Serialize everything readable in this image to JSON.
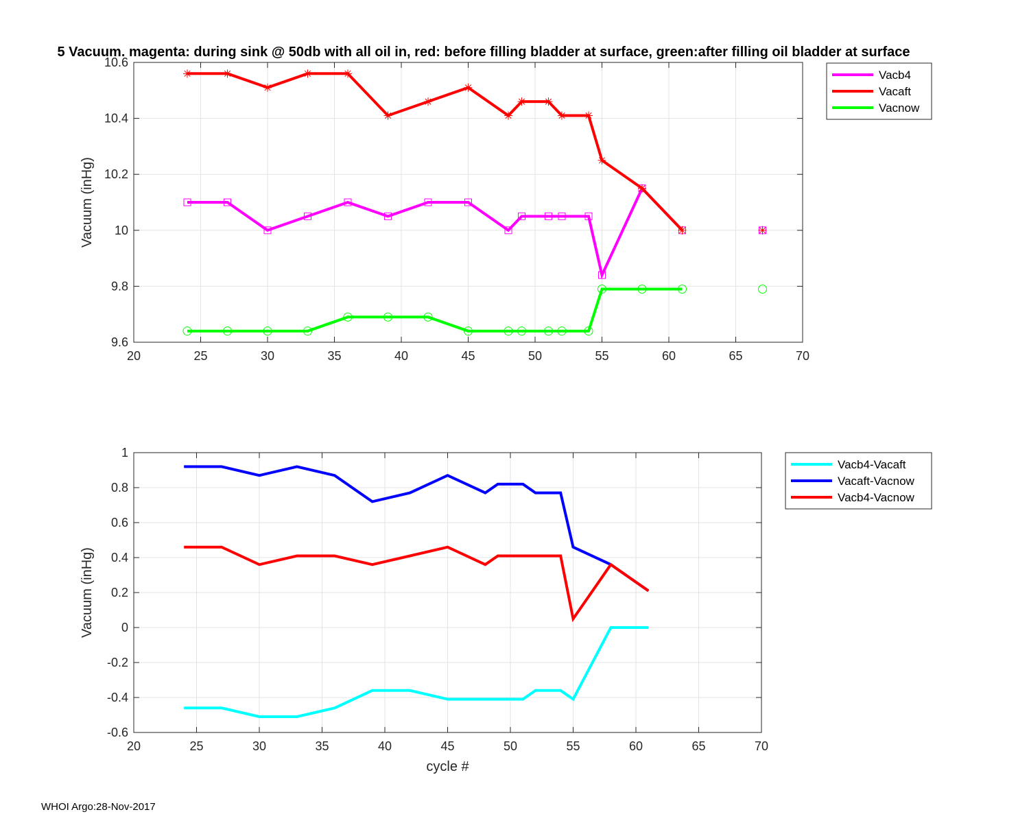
{
  "title": "5 Vacuum. magenta: during sink @ 50db with all oil in, red: before filling bladder at surface, green:after filling oil bladder at surface",
  "footer": "WHOI Argo:28-Nov-2017",
  "chart_data": [
    {
      "type": "line",
      "title": "5 Vacuum. magenta: during sink @ 50db with all oil in, red: before filling bladder at surface, green:after filling oil bladder at surface",
      "xlabel": "",
      "ylabel": "Vacuum (inHg)",
      "xlim": [
        20,
        70
      ],
      "ylim": [
        9.6,
        10.6
      ],
      "xticks": [
        20,
        25,
        30,
        35,
        40,
        45,
        50,
        55,
        60,
        65,
        70
      ],
      "xtick_labels": [
        "20",
        "25",
        "30",
        "35",
        "40",
        "45",
        "50",
        "55",
        "60",
        "65",
        "70"
      ],
      "yticks": [
        9.6,
        9.8,
        10,
        10.2,
        10.4,
        10.6
      ],
      "ytick_labels": [
        "9.6",
        "9.8",
        "10",
        "10.2",
        "10.4",
        "10.6"
      ],
      "grid": true,
      "legend_position": "outside-top-right",
      "x": [
        24,
        27,
        30,
        33,
        36,
        39,
        42,
        45,
        48,
        49,
        51,
        52,
        54,
        55,
        58,
        61,
        67
      ],
      "series": [
        {
          "name": "Vacb4",
          "color": "#ff00ff",
          "marker": "square",
          "values": [
            10.1,
            10.1,
            10.0,
            10.05,
            10.1,
            10.05,
            10.1,
            10.1,
            10.0,
            10.05,
            10.05,
            10.05,
            10.05,
            9.84,
            10.15,
            10.0,
            10.0
          ]
        },
        {
          "name": "Vacaft",
          "color": "#ff0000",
          "marker": "star",
          "values": [
            10.56,
            10.56,
            10.51,
            10.56,
            10.56,
            10.41,
            10.46,
            10.51,
            10.41,
            10.46,
            10.46,
            10.41,
            10.41,
            10.25,
            10.15,
            10.0,
            10.0
          ]
        },
        {
          "name": "Vacnow",
          "color": "#00ff00",
          "marker": "circle",
          "values": [
            9.64,
            9.64,
            9.64,
            9.64,
            9.69,
            9.69,
            9.69,
            9.64,
            9.64,
            9.64,
            9.64,
            9.64,
            9.64,
            9.79,
            9.79,
            9.79,
            9.79
          ]
        }
      ]
    },
    {
      "type": "line",
      "title": "",
      "xlabel": "cycle #",
      "ylabel": "Vacuum (inHg)",
      "xlim": [
        20,
        70
      ],
      "ylim": [
        -0.6,
        1
      ],
      "xticks": [
        20,
        25,
        30,
        35,
        40,
        45,
        50,
        55,
        60,
        65,
        70
      ],
      "xtick_labels": [
        "20",
        "25",
        "30",
        "35",
        "40",
        "45",
        "50",
        "55",
        "60",
        "65",
        "70"
      ],
      "yticks": [
        -0.6,
        -0.4,
        -0.2,
        0,
        0.2,
        0.4,
        0.6,
        0.8,
        1
      ],
      "ytick_labels": [
        "-0.6",
        "-0.4",
        "-0.2",
        "0",
        "0.2",
        "0.4",
        "0.6",
        "0.8",
        "1"
      ],
      "grid": true,
      "legend_position": "outside-top-right",
      "x": [
        24,
        27,
        30,
        33,
        36,
        39,
        42,
        45,
        48,
        49,
        51,
        52,
        54,
        55,
        58,
        61
      ],
      "series": [
        {
          "name": "Vacb4-Vacaft",
          "color": "#00ffff",
          "marker": "none",
          "values": [
            -0.46,
            -0.46,
            -0.51,
            -0.51,
            -0.46,
            -0.36,
            -0.36,
            -0.41,
            -0.41,
            -0.41,
            -0.41,
            -0.36,
            -0.36,
            -0.41,
            0.0,
            0.0
          ]
        },
        {
          "name": "Vacaft-Vacnow",
          "color": "#0000ff",
          "marker": "none",
          "values": [
            0.92,
            0.92,
            0.87,
            0.92,
            0.87,
            0.72,
            0.77,
            0.87,
            0.77,
            0.82,
            0.82,
            0.77,
            0.77,
            0.46,
            0.36,
            0.21
          ]
        },
        {
          "name": "Vacb4-Vacnow",
          "color": "#ff0000",
          "marker": "none",
          "values": [
            0.46,
            0.46,
            0.36,
            0.41,
            0.41,
            0.36,
            0.41,
            0.46,
            0.36,
            0.41,
            0.41,
            0.41,
            0.41,
            0.05,
            0.36,
            0.21
          ]
        }
      ]
    }
  ]
}
